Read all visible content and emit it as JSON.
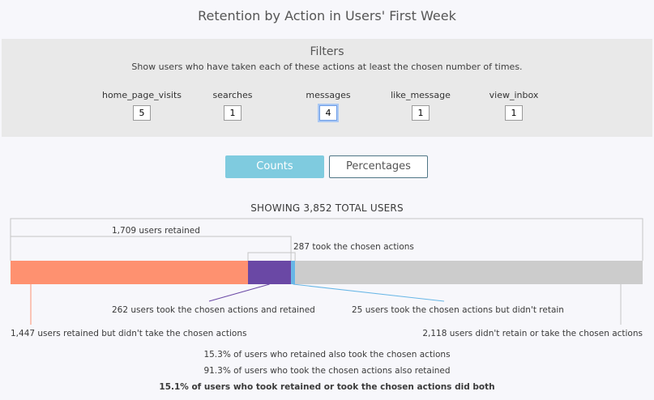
{
  "title": "Retention by Action in Users' First Week",
  "filters": {
    "heading": "Filters",
    "description": "Show users who have taken each of these actions at least the chosen number of times.",
    "items": [
      {
        "label": "home_page_visits",
        "value": "5"
      },
      {
        "label": "searches",
        "value": "1"
      },
      {
        "label": "messages",
        "value": "4"
      },
      {
        "label": "like_message",
        "value": "1"
      },
      {
        "label": "view_inbox",
        "value": "1"
      }
    ]
  },
  "toggle": {
    "counts_label": "Counts",
    "percentages_label": "Percentages",
    "active": "Counts"
  },
  "showing": "SHOWING 3,852 TOTAL USERS",
  "chart_data": {
    "type": "bar",
    "total_users": 3852,
    "segments": [
      {
        "name": "retained, didn't take actions",
        "value": 1447,
        "color": "#fe9170"
      },
      {
        "name": "took actions and retained",
        "value": 262,
        "color": "#6a48a5"
      },
      {
        "name": "took actions, didn't retain",
        "value": 25,
        "color": "#67b6e6"
      },
      {
        "name": "didn't retain or take actions",
        "value": 2118,
        "color": "#cccccc"
      }
    ],
    "annotations": {
      "retained": "1,709 users retained",
      "took_actions": "287 took the chosen actions",
      "both": "262 users took the chosen actions and retained",
      "actions_not_retained": "25 users took the chosen actions but didn't retain",
      "retained_only": "1,447 users retained but didn't take the chosen actions",
      "neither": "2,118 users didn't retain or take the chosen actions"
    }
  },
  "summary": {
    "line1": "15.3% of users who retained also took the chosen actions",
    "line2": "91.3% of users who took the chosen actions also retained",
    "line3": "15.1% of users who took retained or took the chosen actions did both"
  }
}
